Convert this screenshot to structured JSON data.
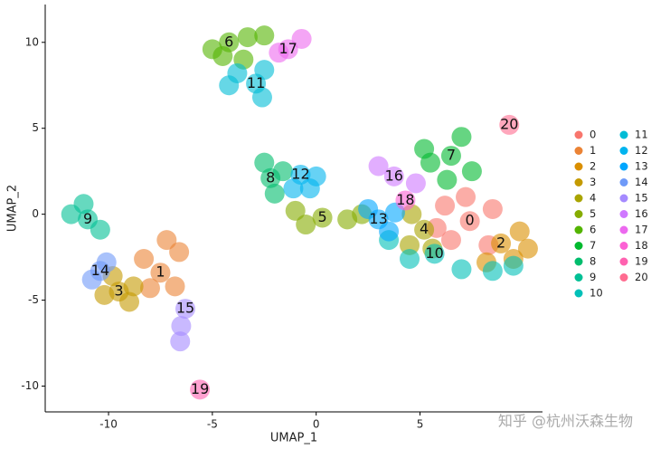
{
  "chart_data": {
    "type": "scatter",
    "xlabel": "UMAP_1",
    "ylabel": "UMAP_2",
    "xlim": [
      -13.05,
      10.9
    ],
    "ylim": [
      -11.5,
      12.2
    ],
    "xticks": [
      -10,
      -5,
      0,
      5
    ],
    "yticks": [
      -10,
      -5,
      0,
      5,
      10
    ],
    "grid": false,
    "legend": "right",
    "watermark": "知乎 @杭州沃森生物",
    "series": [
      {
        "name": "0",
        "color": "#F8766D",
        "x": [
          7.4,
          6.2,
          8.5,
          6.5,
          8.3,
          7.2,
          5.8
        ],
        "y": [
          -0.4,
          0.5,
          0.3,
          -1.5,
          -1.8,
          1.0,
          -0.8
        ]
      },
      {
        "name": "1",
        "color": "#EB8335",
        "x": [
          -7.5,
          -8.3,
          -6.6,
          -6.8,
          -8.0,
          -7.2
        ],
        "y": [
          -3.4,
          -2.6,
          -2.2,
          -4.2,
          -4.3,
          -1.5
        ]
      },
      {
        "name": "2",
        "color": "#DA8F00",
        "x": [
          8.9,
          9.8,
          9.5,
          8.2,
          10.2
        ],
        "y": [
          -1.7,
          -1.0,
          -2.6,
          -2.8,
          -2.0
        ]
      },
      {
        "name": "3",
        "color": "#C49A00",
        "x": [
          -9.5,
          -10.2,
          -8.8,
          -9.0,
          -9.8
        ],
        "y": [
          -4.5,
          -4.7,
          -4.2,
          -5.1,
          -3.6
        ]
      },
      {
        "name": "4",
        "color": "#A9A400",
        "x": [
          5.2,
          4.6,
          5.6,
          4.5
        ],
        "y": [
          -0.9,
          0.0,
          -2.0,
          -1.8
        ]
      },
      {
        "name": "5",
        "color": "#86AC00",
        "x": [
          0.3,
          -1.0,
          1.5,
          -0.5,
          2.2
        ],
        "y": [
          -0.2,
          0.2,
          -0.3,
          -0.6,
          0.0
        ]
      },
      {
        "name": "6",
        "color": "#53B400",
        "x": [
          -4.2,
          -5.0,
          -3.3,
          -4.5,
          -2.5,
          -3.5
        ],
        "y": [
          10.0,
          9.6,
          10.3,
          9.2,
          10.4,
          9.0
        ]
      },
      {
        "name": "7",
        "color": "#00B92E",
        "x": [
          6.5,
          5.5,
          7.0,
          6.3,
          7.5,
          5.2
        ],
        "y": [
          3.4,
          3.0,
          4.5,
          2.0,
          2.5,
          3.8
        ]
      },
      {
        "name": "8",
        "color": "#00BD6D",
        "x": [
          -2.2,
          -2.5,
          -2.0,
          -1.6
        ],
        "y": [
          2.1,
          3.0,
          1.2,
          2.5
        ]
      },
      {
        "name": "9",
        "color": "#00C095",
        "x": [
          -11.0,
          -11.2,
          -10.4,
          -11.8
        ],
        "y": [
          -0.3,
          0.6,
          -0.9,
          0.0
        ]
      },
      {
        "name": "10",
        "color": "#00C0B8",
        "x": [
          5.7,
          4.5,
          7.0,
          8.5,
          3.5,
          9.5
        ],
        "y": [
          -2.3,
          -2.6,
          -3.2,
          -3.3,
          -1.5,
          -3.0
        ]
      },
      {
        "name": "11",
        "color": "#00BCD6",
        "x": [
          -2.9,
          -3.8,
          -2.5,
          -4.2,
          -2.6
        ],
        "y": [
          7.6,
          8.2,
          8.4,
          7.5,
          6.8
        ]
      },
      {
        "name": "12",
        "color": "#00B4EF",
        "x": [
          -0.75,
          -1.1,
          0.0,
          -0.3
        ],
        "y": [
          2.3,
          1.5,
          2.2,
          1.5
        ]
      },
      {
        "name": "13",
        "color": "#00A6FF",
        "x": [
          3.0,
          2.5,
          3.5,
          3.8
        ],
        "y": [
          -0.3,
          0.3,
          -1.0,
          0.1
        ]
      },
      {
        "name": "14",
        "color": "#6F9AF8",
        "x": [
          -10.4,
          -10.8,
          -10.1
        ],
        "y": [
          -3.3,
          -3.8,
          -2.8
        ]
      },
      {
        "name": "15",
        "color": "#A58AFF",
        "x": [
          -6.3,
          -6.5,
          -6.55
        ],
        "y": [
          -5.5,
          -6.5,
          -7.4
        ]
      },
      {
        "name": "16",
        "color": "#CF78FF",
        "x": [
          3.75,
          3.0,
          4.8
        ],
        "y": [
          2.2,
          2.8,
          1.8
        ]
      },
      {
        "name": "17",
        "color": "#EC69EF",
        "x": [
          -1.35,
          -0.7,
          -1.8
        ],
        "y": [
          9.6,
          10.2,
          9.4
        ]
      },
      {
        "name": "18",
        "color": "#FC61D4",
        "x": [
          4.3
        ],
        "y": [
          0.8
        ]
      },
      {
        "name": "19",
        "color": "#FF62B0",
        "x": [
          -5.6
        ],
        "y": [
          -10.2
        ]
      },
      {
        "name": "20",
        "color": "#FF6C90",
        "x": [
          9.3
        ],
        "y": [
          5.2
        ]
      }
    ]
  }
}
